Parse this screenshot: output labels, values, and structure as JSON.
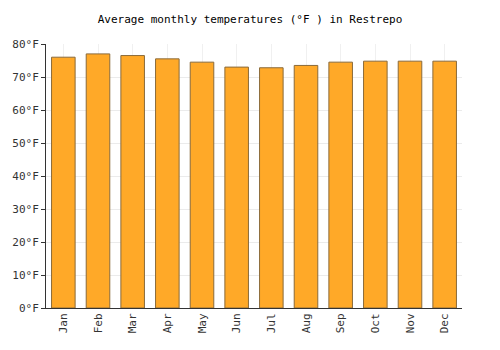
{
  "chart_data": {
    "type": "bar",
    "title": "Average monthly temperatures (°F ) in Restrepo",
    "categories": [
      "Jan",
      "Feb",
      "Mar",
      "Apr",
      "May",
      "Jun",
      "Jul",
      "Aug",
      "Sep",
      "Oct",
      "Nov",
      "Dec"
    ],
    "values": [
      76,
      77,
      76.5,
      75.5,
      74.5,
      73,
      72.8,
      73.5,
      74.5,
      74.8,
      74.8,
      74.8
    ],
    "color": "#ffa928",
    "ylim": [
      0,
      80
    ],
    "yticks": [
      {
        "value": 0,
        "label": "0°F"
      },
      {
        "value": 10,
        "label": "10°F"
      },
      {
        "value": 20,
        "label": "20°F"
      },
      {
        "value": 30,
        "label": "30°F"
      },
      {
        "value": 40,
        "label": "40°F"
      },
      {
        "value": 50,
        "label": "50°F"
      },
      {
        "value": 60,
        "label": "60°F"
      },
      {
        "value": 70,
        "label": "70°F"
      },
      {
        "value": 80,
        "label": "80°F"
      }
    ],
    "grid": true
  }
}
